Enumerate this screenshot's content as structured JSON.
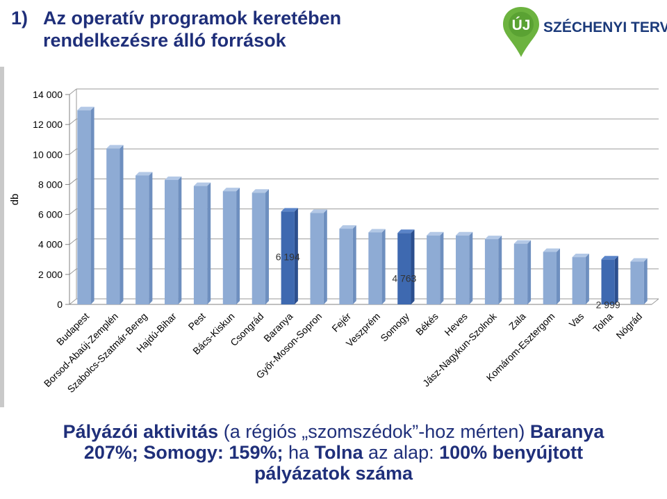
{
  "slide": {
    "number": "1)",
    "title_line1": "Az operatív programok keretében",
    "title_line2": "rendelkezésre álló források",
    "logo_badge": "ÚJ",
    "logo_text": "SZÉCHENYI TERV",
    "caption": {
      "line1_bold": "Pályázói aktivitás",
      "line1_normal": " (a régiós „szomszédok”-hoz mérten) ",
      "line1_bold2": "Baranya",
      "line2_bold": "207%; Somogy: 159%;",
      "line2_normal": " ha ",
      "line2_bold2": "Tolna",
      "line2_normal2": " az alap: ",
      "line2_bold3": "100% benyújtott",
      "line3_bold": "pályázatok száma"
    }
  },
  "colors": {
    "title": "#1f2f7a",
    "bar": "#8eabd4",
    "bar_highlight": "#4a73b8",
    "logo_green": "#6cb33f",
    "logo_text": "#1b3a7a"
  },
  "chart_data": {
    "type": "bar",
    "ylabel": "db",
    "ylim": [
      0,
      14000
    ],
    "yticks": [
      0,
      2000,
      4000,
      6000,
      8000,
      10000,
      12000,
      14000
    ],
    "ytick_labels": [
      "0",
      "2 000",
      "4 000",
      "6 000",
      "8 000",
      "10 000",
      "12 000",
      "14 000"
    ],
    "grid": true,
    "categories": [
      "Budapest",
      "Borsod-Abaúj-Zemplén",
      "Szabolcs-Szatmár-Bereg",
      "Hajdú-Bihar",
      "Pest",
      "Bács-Kiskun",
      "Csongrád",
      "Baranya",
      "Győr-Moson-Sopron",
      "Fejér",
      "Veszprém",
      "Somogy",
      "Békés",
      "Heves",
      "Jász-Nagykun-Szolnok",
      "Zala",
      "Komárom-Esztergom",
      "Vas",
      "Tolna",
      "Nógrád"
    ],
    "values": [
      12950,
      10400,
      8600,
      8300,
      7900,
      7550,
      7450,
      6194,
      6100,
      5050,
      4800,
      4763,
      4600,
      4600,
      4350,
      4050,
      3500,
      3150,
      2999,
      2850
    ],
    "highlighted": [
      "Baranya",
      "Somogy",
      "Tolna"
    ],
    "data_labels": [
      {
        "category": "Baranya",
        "label": "6 194"
      },
      {
        "category": "Somogy",
        "label": "4 763"
      },
      {
        "category": "Tolna",
        "label": "2 999"
      }
    ]
  }
}
